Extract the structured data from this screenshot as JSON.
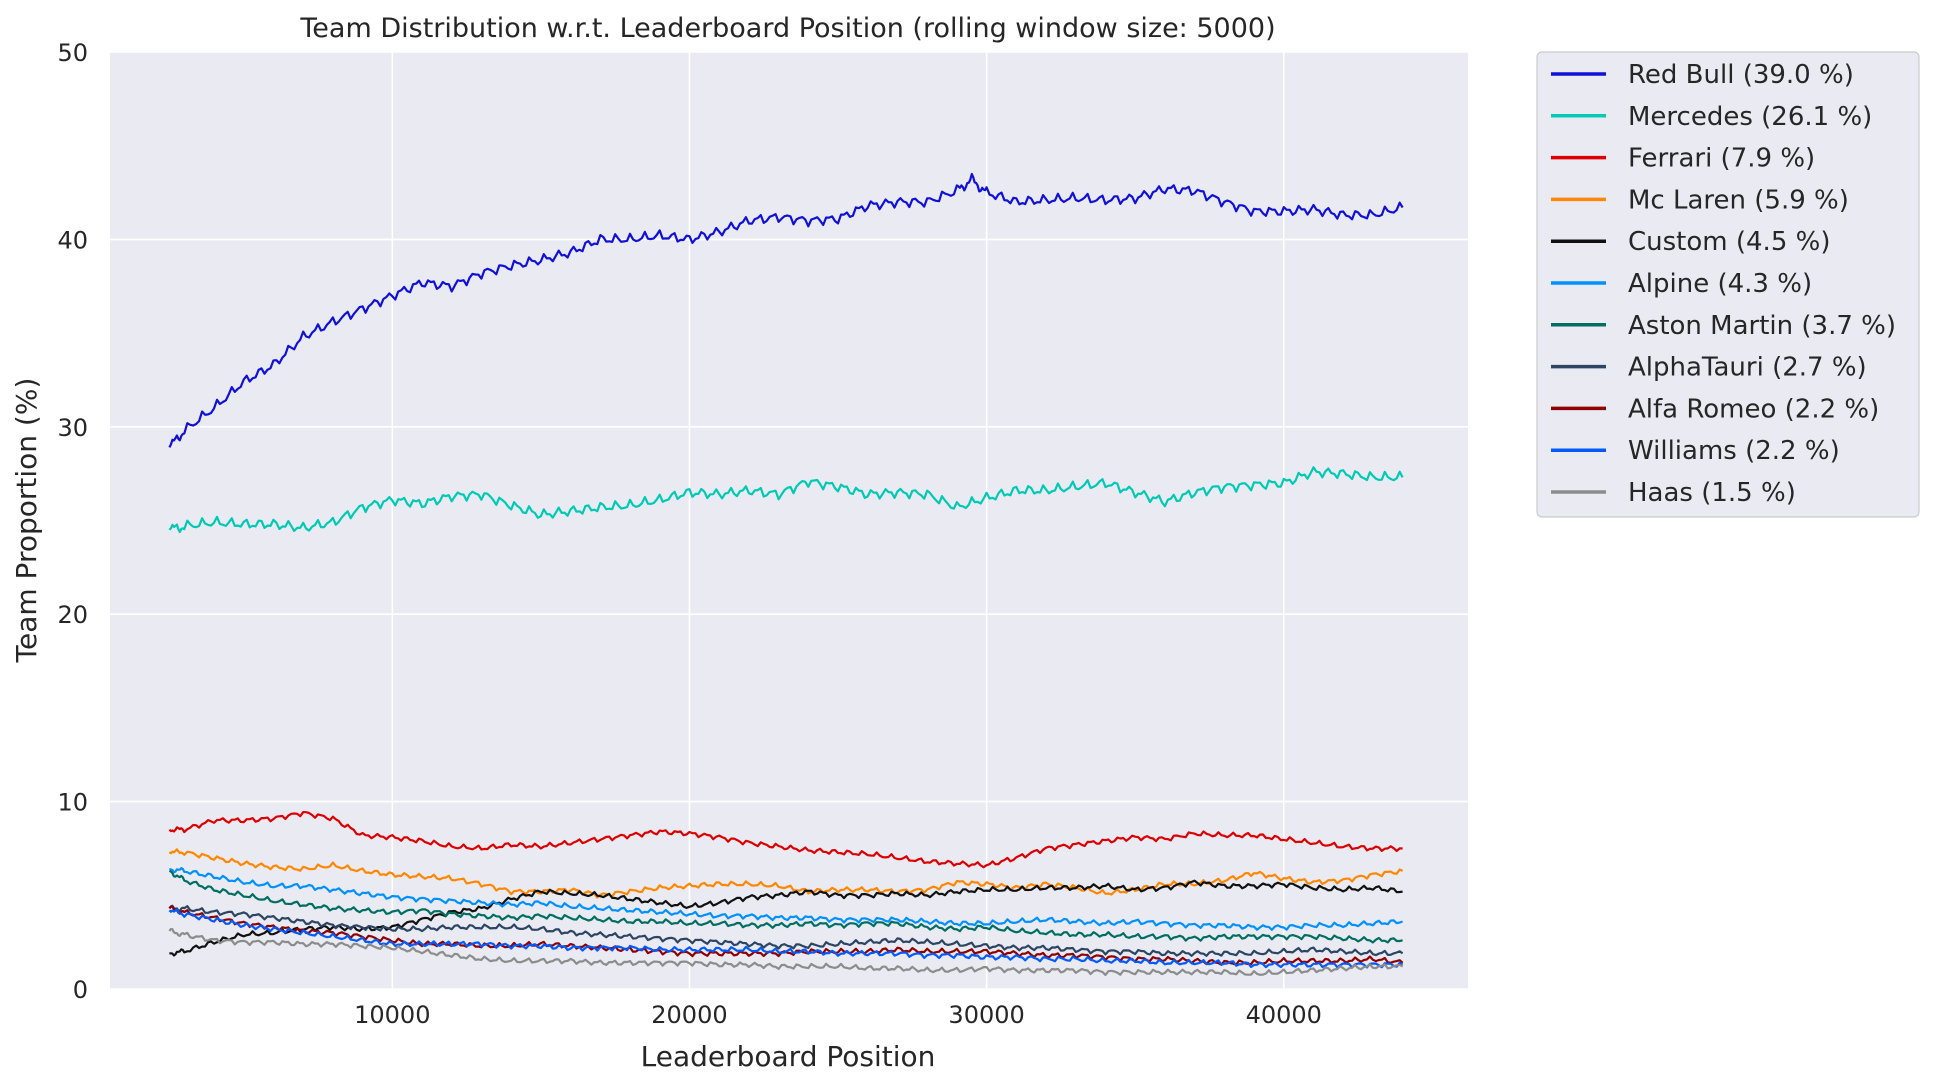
{
  "chart_data": {
    "type": "line",
    "title": "Team Distribution w.r.t. Leaderboard Position (rolling window size: 5000)",
    "xlabel": "Leaderboard Position",
    "ylabel": "Team Proportion (%)",
    "xlim": [
      500,
      46200
    ],
    "ylim": [
      0,
      50
    ],
    "xticks": [
      10000,
      20000,
      30000,
      40000
    ],
    "yticks": [
      0,
      10,
      20,
      30,
      40,
      50
    ],
    "grid": true,
    "legend_position": "outside right",
    "background": "#eaeaf2",
    "series": [
      {
        "name": "Red Bull (39.0 %)",
        "color": "#1010d8",
        "x": [
          2500,
          3000,
          4000,
          5000,
          6000,
          7000,
          8000,
          9000,
          10000,
          11000,
          12000,
          13000,
          14000,
          15000,
          16000,
          17000,
          18000,
          19000,
          20000,
          21000,
          22000,
          23000,
          24000,
          25000,
          26000,
          27000,
          28000,
          29000,
          29500,
          30000,
          31000,
          32000,
          33000,
          34000,
          35000,
          36000,
          37000,
          38000,
          39000,
          40000,
          41000,
          42000,
          43000,
          44000
        ],
        "y": [
          28.9,
          29.8,
          31.0,
          32.4,
          33.3,
          34.8,
          35.6,
          36.3,
          37.0,
          37.7,
          37.5,
          38.2,
          38.6,
          38.9,
          39.3,
          40.0,
          40.0,
          40.2,
          40.0,
          40.4,
          41.0,
          41.2,
          41.0,
          41.1,
          41.8,
          42.0,
          42.0,
          42.6,
          43.2,
          42.5,
          42.0,
          42.1,
          42.2,
          42.1,
          42.2,
          42.7,
          42.6,
          42.0,
          41.5,
          41.5,
          41.6,
          41.3,
          41.3,
          41.7
        ]
      },
      {
        "name": "Mercedes (26.1 %)",
        "color": "#00c9b4",
        "x": [
          2500,
          3000,
          4000,
          5000,
          6000,
          7000,
          8000,
          9000,
          10000,
          11000,
          12000,
          13000,
          14000,
          15000,
          16000,
          17000,
          18000,
          19000,
          20000,
          21000,
          22000,
          23000,
          24000,
          25000,
          26000,
          27000,
          28000,
          29000,
          30000,
          31000,
          32000,
          33000,
          34000,
          35000,
          36000,
          37000,
          38000,
          39000,
          40000,
          41000,
          42000,
          43000,
          44000
        ],
        "y": [
          24.5,
          24.7,
          24.9,
          24.8,
          24.8,
          24.6,
          24.9,
          25.7,
          26.1,
          25.9,
          26.3,
          26.4,
          25.8,
          25.3,
          25.5,
          25.7,
          25.8,
          26.1,
          26.5,
          26.4,
          26.6,
          26.4,
          27.1,
          26.8,
          26.4,
          26.5,
          26.4,
          25.7,
          26.2,
          26.6,
          26.6,
          26.8,
          27.0,
          26.5,
          26.0,
          26.5,
          26.8,
          26.9,
          27.0,
          27.6,
          27.5,
          27.3,
          27.3
        ]
      },
      {
        "name": "Ferrari (7.9 %)",
        "color": "#dc0000",
        "x": [
          2500,
          3000,
          4000,
          5000,
          6000,
          7000,
          8000,
          9000,
          10000,
          11000,
          12000,
          13000,
          14000,
          15000,
          16000,
          17000,
          18000,
          19000,
          20000,
          21000,
          22000,
          23000,
          24000,
          25000,
          26000,
          27000,
          28000,
          29000,
          30000,
          31000,
          32000,
          33000,
          34000,
          35000,
          36000,
          37000,
          38000,
          39000,
          40000,
          41000,
          42000,
          43000,
          44000
        ],
        "y": [
          8.5,
          8.5,
          9.0,
          9.0,
          9.1,
          9.4,
          9.1,
          8.2,
          8.1,
          7.9,
          7.6,
          7.5,
          7.7,
          7.6,
          7.8,
          8.0,
          8.2,
          8.4,
          8.3,
          8.1,
          7.8,
          7.6,
          7.4,
          7.3,
          7.2,
          7.0,
          6.8,
          6.7,
          6.6,
          7.0,
          7.5,
          7.7,
          7.9,
          8.1,
          8.0,
          8.3,
          8.2,
          8.2,
          8.0,
          7.8,
          7.6,
          7.5,
          7.5
        ]
      },
      {
        "name": "Mc Laren (5.9 %)",
        "color": "#ff8700",
        "x": [
          2500,
          3000,
          4000,
          5000,
          6000,
          7000,
          8000,
          9000,
          10000,
          11000,
          12000,
          13000,
          14000,
          15000,
          16000,
          17000,
          18000,
          19000,
          20000,
          21000,
          22000,
          23000,
          24000,
          25000,
          26000,
          27000,
          28000,
          29000,
          30000,
          31000,
          32000,
          33000,
          34000,
          35000,
          36000,
          37000,
          38000,
          39000,
          40000,
          41000,
          42000,
          43000,
          44000
        ],
        "y": [
          7.3,
          7.3,
          7.0,
          6.7,
          6.5,
          6.4,
          6.6,
          6.3,
          6.1,
          6.0,
          5.9,
          5.6,
          5.2,
          5.2,
          5.3,
          5.0,
          5.2,
          5.4,
          5.5,
          5.6,
          5.6,
          5.5,
          5.2,
          5.3,
          5.3,
          5.2,
          5.3,
          5.7,
          5.6,
          5.4,
          5.6,
          5.4,
          5.1,
          5.3,
          5.6,
          5.6,
          5.8,
          6.2,
          5.9,
          5.7,
          5.8,
          6.1,
          6.3
        ]
      },
      {
        "name": "Custom (4.5 %)",
        "color": "#111111",
        "x": [
          2500,
          3000,
          4000,
          5000,
          6000,
          7000,
          8000,
          9000,
          10000,
          11000,
          12000,
          13000,
          14000,
          15000,
          16000,
          17000,
          18000,
          19000,
          20000,
          21000,
          22000,
          23000,
          24000,
          25000,
          26000,
          27000,
          28000,
          29000,
          30000,
          31000,
          32000,
          33000,
          34000,
          35000,
          36000,
          37000,
          38000,
          39000,
          40000,
          41000,
          42000,
          43000,
          44000
        ],
        "y": [
          1.9,
          2.0,
          2.5,
          2.9,
          3.0,
          3.2,
          3.3,
          3.2,
          3.3,
          3.7,
          4.1,
          4.3,
          4.8,
          5.2,
          5.1,
          5.0,
          4.8,
          4.6,
          4.4,
          4.6,
          4.9,
          5.0,
          5.2,
          5.0,
          5.0,
          5.1,
          5.0,
          5.2,
          5.3,
          5.3,
          5.4,
          5.4,
          5.5,
          5.3,
          5.4,
          5.7,
          5.5,
          5.5,
          5.6,
          5.4,
          5.3,
          5.4,
          5.2
        ]
      },
      {
        "name": "Alpine (4.3 %)",
        "color": "#0090ff",
        "x": [
          2500,
          3000,
          4000,
          5000,
          6000,
          7000,
          8000,
          9000,
          10000,
          11000,
          12000,
          13000,
          14000,
          15000,
          16000,
          17000,
          18000,
          19000,
          20000,
          21000,
          22000,
          23000,
          24000,
          25000,
          26000,
          27000,
          28000,
          29000,
          30000,
          31000,
          32000,
          33000,
          34000,
          35000,
          36000,
          37000,
          38000,
          39000,
          40000,
          41000,
          42000,
          43000,
          44000
        ],
        "y": [
          6.4,
          6.3,
          6.0,
          5.7,
          5.5,
          5.5,
          5.3,
          5.1,
          4.9,
          4.8,
          4.7,
          4.6,
          4.5,
          4.6,
          4.4,
          4.3,
          4.2,
          4.1,
          4.0,
          3.9,
          3.9,
          3.8,
          3.8,
          3.7,
          3.7,
          3.7,
          3.6,
          3.5,
          3.5,
          3.6,
          3.7,
          3.6,
          3.5,
          3.6,
          3.5,
          3.4,
          3.4,
          3.3,
          3.3,
          3.4,
          3.4,
          3.5,
          3.6
        ]
      },
      {
        "name": "Aston Martin (3.7 %)",
        "color": "#006f62",
        "x": [
          2500,
          3000,
          4000,
          5000,
          6000,
          7000,
          8000,
          9000,
          10000,
          11000,
          12000,
          13000,
          14000,
          15000,
          16000,
          17000,
          18000,
          19000,
          20000,
          21000,
          22000,
          23000,
          24000,
          25000,
          26000,
          27000,
          28000,
          29000,
          30000,
          31000,
          32000,
          33000,
          34000,
          35000,
          36000,
          37000,
          38000,
          39000,
          40000,
          41000,
          42000,
          43000,
          44000
        ],
        "y": [
          6.3,
          5.8,
          5.3,
          5.0,
          4.7,
          4.5,
          4.3,
          4.2,
          4.1,
          4.2,
          4.0,
          3.9,
          3.8,
          3.9,
          3.8,
          3.7,
          3.6,
          3.6,
          3.5,
          3.5,
          3.4,
          3.4,
          3.5,
          3.4,
          3.5,
          3.5,
          3.3,
          3.2,
          3.3,
          3.1,
          3.0,
          2.9,
          2.9,
          2.8,
          2.8,
          2.7,
          2.8,
          2.8,
          2.8,
          2.8,
          2.7,
          2.6,
          2.6
        ]
      },
      {
        "name": "AlphaTauri (2.7 %)",
        "color": "#2b4562",
        "x": [
          2500,
          3000,
          4000,
          5000,
          6000,
          7000,
          8000,
          9000,
          10000,
          11000,
          12000,
          13000,
          14000,
          15000,
          16000,
          17000,
          18000,
          19000,
          20000,
          21000,
          22000,
          23000,
          24000,
          25000,
          26000,
          27000,
          28000,
          29000,
          30000,
          31000,
          32000,
          33000,
          34000,
          35000,
          36000,
          37000,
          38000,
          39000,
          40000,
          41000,
          42000,
          43000,
          44000
        ],
        "y": [
          4.3,
          4.3,
          4.1,
          4.0,
          3.8,
          3.6,
          3.4,
          3.3,
          3.2,
          3.2,
          3.3,
          3.3,
          3.3,
          3.2,
          3.0,
          2.9,
          2.8,
          2.7,
          2.6,
          2.5,
          2.4,
          2.3,
          2.3,
          2.4,
          2.5,
          2.6,
          2.5,
          2.4,
          2.3,
          2.2,
          2.2,
          2.1,
          2.0,
          2.0,
          1.9,
          1.9,
          1.9,
          1.9,
          2.0,
          2.1,
          2.0,
          1.9,
          1.9
        ]
      },
      {
        "name": "Alfa Romeo (2.2 %)",
        "color": "#900000",
        "x": [
          2500,
          3000,
          4000,
          5000,
          6000,
          7000,
          8000,
          9000,
          10000,
          11000,
          12000,
          13000,
          14000,
          15000,
          16000,
          17000,
          18000,
          19000,
          20000,
          21000,
          22000,
          23000,
          24000,
          25000,
          26000,
          27000,
          28000,
          29000,
          30000,
          31000,
          32000,
          33000,
          34000,
          35000,
          36000,
          37000,
          38000,
          39000,
          40000,
          41000,
          42000,
          43000,
          44000
        ],
        "y": [
          4.3,
          4.1,
          3.8,
          3.5,
          3.3,
          3.1,
          3.0,
          2.8,
          2.6,
          2.4,
          2.4,
          2.3,
          2.3,
          2.4,
          2.3,
          2.2,
          2.1,
          2.0,
          1.9,
          1.9,
          1.9,
          1.9,
          2.0,
          2.0,
          2.0,
          2.1,
          2.0,
          2.0,
          2.0,
          1.9,
          1.8,
          1.8,
          1.7,
          1.6,
          1.6,
          1.5,
          1.4,
          1.4,
          1.5,
          1.5,
          1.5,
          1.6,
          1.4
        ]
      },
      {
        "name": "Williams (2.2 %)",
        "color": "#005aff",
        "x": [
          2500,
          3000,
          4000,
          5000,
          6000,
          7000,
          8000,
          9000,
          10000,
          11000,
          12000,
          13000,
          14000,
          15000,
          16000,
          17000,
          18000,
          19000,
          20000,
          21000,
          22000,
          23000,
          24000,
          25000,
          26000,
          27000,
          28000,
          29000,
          30000,
          31000,
          32000,
          33000,
          34000,
          35000,
          36000,
          37000,
          38000,
          39000,
          40000,
          41000,
          42000,
          43000,
          44000
        ],
        "y": [
          4.2,
          4.0,
          3.7,
          3.4,
          3.2,
          3.0,
          2.8,
          2.6,
          2.4,
          2.4,
          2.4,
          2.4,
          2.3,
          2.3,
          2.2,
          2.2,
          2.2,
          2.1,
          2.1,
          2.1,
          2.1,
          2.0,
          2.0,
          1.9,
          1.9,
          1.9,
          1.8,
          1.8,
          1.7,
          1.7,
          1.6,
          1.6,
          1.5,
          1.5,
          1.4,
          1.4,
          1.4,
          1.3,
          1.3,
          1.3,
          1.3,
          1.3,
          1.3
        ]
      },
      {
        "name": "Haas (1.5 %)",
        "color": "#8c8c8c",
        "x": [
          2500,
          3000,
          4000,
          5000,
          6000,
          7000,
          8000,
          9000,
          10000,
          11000,
          12000,
          13000,
          14000,
          15000,
          16000,
          17000,
          18000,
          19000,
          20000,
          21000,
          22000,
          23000,
          24000,
          25000,
          26000,
          27000,
          28000,
          29000,
          30000,
          31000,
          32000,
          33000,
          34000,
          35000,
          36000,
          37000,
          38000,
          39000,
          40000,
          41000,
          42000,
          43000,
          44000
        ],
        "y": [
          3.1,
          2.9,
          2.6,
          2.5,
          2.5,
          2.4,
          2.4,
          2.3,
          2.2,
          2.0,
          1.8,
          1.6,
          1.5,
          1.5,
          1.5,
          1.4,
          1.4,
          1.4,
          1.4,
          1.3,
          1.3,
          1.2,
          1.2,
          1.2,
          1.1,
          1.1,
          1.0,
          1.0,
          1.1,
          1.0,
          1.0,
          1.0,
          0.9,
          0.9,
          0.9,
          0.9,
          0.9,
          0.8,
          0.9,
          1.0,
          1.1,
          1.2,
          1.2
        ]
      }
    ]
  }
}
